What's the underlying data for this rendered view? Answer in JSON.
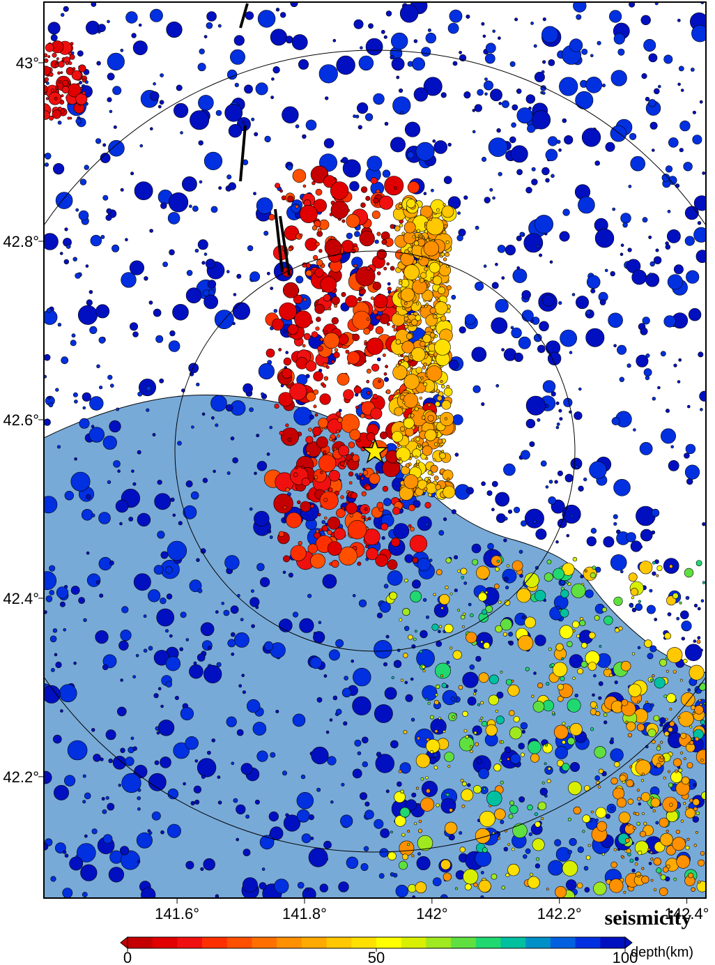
{
  "map": {
    "title": "seismicity",
    "xlim": [
      141.391,
      142.43
    ],
    "ylim": [
      42.064,
      43.068
    ],
    "xticks": [
      {
        "value": 141.6,
        "label": "141.6°"
      },
      {
        "value": 141.8,
        "label": "141.8°"
      },
      {
        "value": 142,
        "label": "142°"
      },
      {
        "value": 142.2,
        "label": "142.2°"
      },
      {
        "value": 142.4,
        "label": "142.4°"
      }
    ],
    "yticks": [
      {
        "value": 43,
        "label": "43°"
      },
      {
        "value": 42.8,
        "label": "42.8°"
      },
      {
        "value": 42.6,
        "label": "42.6°"
      },
      {
        "value": 42.4,
        "label": "42.4°"
      },
      {
        "value": 42.2,
        "label": "42.2°"
      }
    ],
    "colorbar": {
      "label": "depth(km)",
      "lim": [
        0,
        100
      ],
      "ticks": [
        0,
        50,
        100
      ],
      "colors": [
        "#c40000",
        "#e00000",
        "#f01010",
        "#ff3000",
        "#ff5000",
        "#ff7000",
        "#ff9000",
        "#ffaa00",
        "#ffc800",
        "#ffe000",
        "#ffff00",
        "#d8f000",
        "#a0e820",
        "#60e040",
        "#20d870",
        "#00c0a0",
        "#0090c8",
        "#0060e0",
        "#0030e0",
        "#0010c0"
      ]
    }
  }
}
